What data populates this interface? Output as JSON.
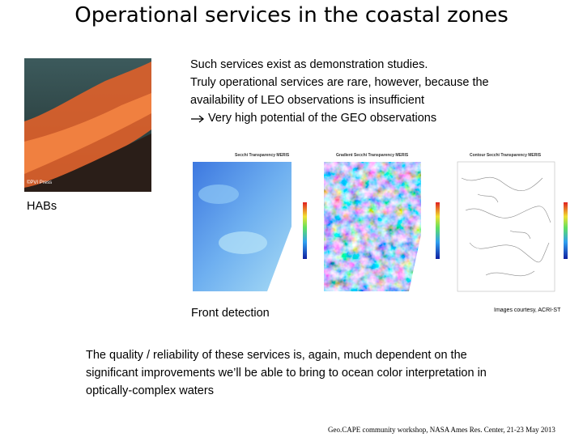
{
  "title": "Operational services in the coastal zones",
  "intro": {
    "lines": [
      "Such services exist as demonstration studies.",
      "Truly operational services are rare, however, because the",
      "availability of LEO observations is insufficient"
    ],
    "arrow_line": "Very high potential of the GEO observations"
  },
  "photo": {
    "credit": "©PVI Press",
    "label": "HABs"
  },
  "figure": {
    "panels": [
      {
        "title": "Secchi Transparency MERIS"
      },
      {
        "title": "Gradient Secchi Transparency MERIS"
      },
      {
        "title": "Contour Secchi Transparency MERIS"
      }
    ],
    "caption": "Front detection",
    "credit": "Images courtesy, ACRI-ST"
  },
  "conclusion": {
    "lines": [
      "The quality / reliability of these services is, again, much dependent on the",
      "significant improvements we’ll be able to bring to ocean color interpretation in",
      "optically-complex waters"
    ]
  },
  "footer": "Geo.CAPE community workshop, NASA Ames Res. Center, 21-23 May 2013"
}
